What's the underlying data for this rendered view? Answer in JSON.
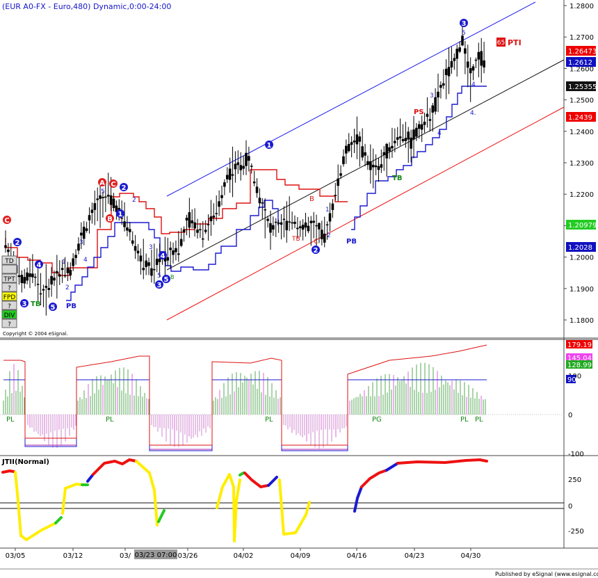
{
  "title": "(EUR A0-FX - Euro,480) Dynamic,0:00-24:00",
  "copyright": "Copyright © 2004 eSignal.",
  "footer": "Published by eSignal (www.esignal.com)",
  "price_panel": {
    "y_ticks": [
      "1.2800",
      "1.2700",
      "1.2600",
      "1.2500",
      "1.2400",
      "1.2300",
      "1.2200",
      "1.2100",
      "1.2000",
      "1.1900",
      "1.1800"
    ],
    "right_labels": [
      {
        "text": "1.26473",
        "color": "#ee0000"
      },
      {
        "text": "1.2612",
        "color": "#1010c0"
      },
      {
        "text": "1.25355",
        "color": "#111111"
      },
      {
        "text": "1.2439",
        "color": "#ee0000"
      },
      {
        "text": "1.20979",
        "color": "#22cc22"
      },
      {
        "text": "1.2028",
        "color": "#1010c0"
      }
    ],
    "pti": {
      "badge": "65",
      "text": "PTI"
    },
    "side_buttons": [
      "TD",
      "",
      "TPT",
      "?",
      "FPD",
      "?",
      "DIV",
      "?"
    ],
    "annotations": [
      {
        "t": "C",
        "style": "redcircle"
      },
      {
        "t": "A",
        "style": "redcircle"
      },
      {
        "t": "C",
        "style": "redcircle"
      },
      {
        "t": "B",
        "style": "redcircle"
      },
      {
        "t": "1",
        "style": "bluecircle"
      },
      {
        "t": "2",
        "style": "bluecircle"
      },
      {
        "t": "3",
        "style": "bluecircle"
      },
      {
        "t": "4",
        "style": "bluecircle"
      },
      {
        "t": "5",
        "style": "bluecircle"
      },
      {
        "t": "TB",
        "style": "green"
      },
      {
        "t": "PB",
        "style": "blue"
      },
      {
        "t": "PS",
        "style": "red"
      },
      {
        "t": "B",
        "style": "green"
      },
      {
        "t": "B",
        "style": "red"
      },
      {
        "t": "C",
        "style": "red"
      },
      {
        "t": "TB",
        "style": "red"
      }
    ]
  },
  "osc_panel": {
    "y_ticks": [
      "100",
      "0",
      "-100"
    ],
    "right_labels": [
      {
        "text": "179.19",
        "color": "#ee0000"
      },
      {
        "text": "145.04",
        "color": "#ee44ee"
      },
      {
        "text": "128.99",
        "color": "#22aa22"
      },
      {
        "text": "90",
        "color": "#1010c0"
      }
    ],
    "labels": [
      "PL",
      "PL",
      "PL",
      "PG",
      "PL",
      "PL"
    ]
  },
  "jtii_panel": {
    "title": "JTII(Normal)",
    "y_ticks": [
      "250",
      "0",
      "-250"
    ]
  },
  "x_axis": {
    "ticks": [
      "03/05",
      "03/12",
      "03/",
      "03/26",
      "04/02",
      "04/09",
      "04/16",
      "04/23",
      "04/30"
    ],
    "cursor_label": "03/23 07:00"
  },
  "chart_data": [
    {
      "type": "line",
      "title": "",
      "series": [
        {
          "name": "",
          "points": [
            [
              0,
              1.204
            ],
            [
              6,
              1.192
            ],
            [
              10,
              1.195
            ],
            [
              14,
              1.188
            ],
            [
              19,
              1.195
            ],
            [
              24,
              1.196
            ],
            [
              28,
              1.206
            ],
            [
              34,
              1.217
            ],
            [
              38,
              1.22
            ],
            [
              45,
              1.21
            ],
            [
              50,
              1.199
            ],
            [
              54,
              1.196
            ],
            [
              59,
              1.201
            ],
            [
              64,
              1.203
            ],
            [
              68,
              1.212
            ],
            [
              73,
              1.208
            ],
            [
              78,
              1.214
            ],
            [
              82,
              1.226
            ],
            [
              86,
              1.229
            ],
            [
              90,
              1.231
            ],
            [
              94,
              1.219
            ],
            [
              98,
              1.209
            ],
            [
              102,
              1.21
            ],
            [
              106,
              1.212
            ],
            [
              110,
              1.209
            ],
            [
              114,
              1.21
            ],
            [
              118,
              1.206
            ],
            [
              122,
              1.22
            ],
            [
              126,
              1.234
            ],
            [
              130,
              1.238
            ],
            [
              134,
              1.23
            ],
            [
              138,
              1.228
            ],
            [
              142,
              1.235
            ],
            [
              146,
              1.239
            ],
            [
              150,
              1.237
            ],
            [
              154,
              1.242
            ],
            [
              158,
              1.246
            ],
            [
              162,
              1.256
            ],
            [
              166,
              1.262
            ],
            [
              169,
              1.269
            ],
            [
              172,
              1.258
            ],
            [
              175,
              1.264
            ],
            [
              178,
              1.2612
            ]
          ]
        }
      ],
      "ylim": [
        1.175,
        1.2825
      ]
    }
  ]
}
